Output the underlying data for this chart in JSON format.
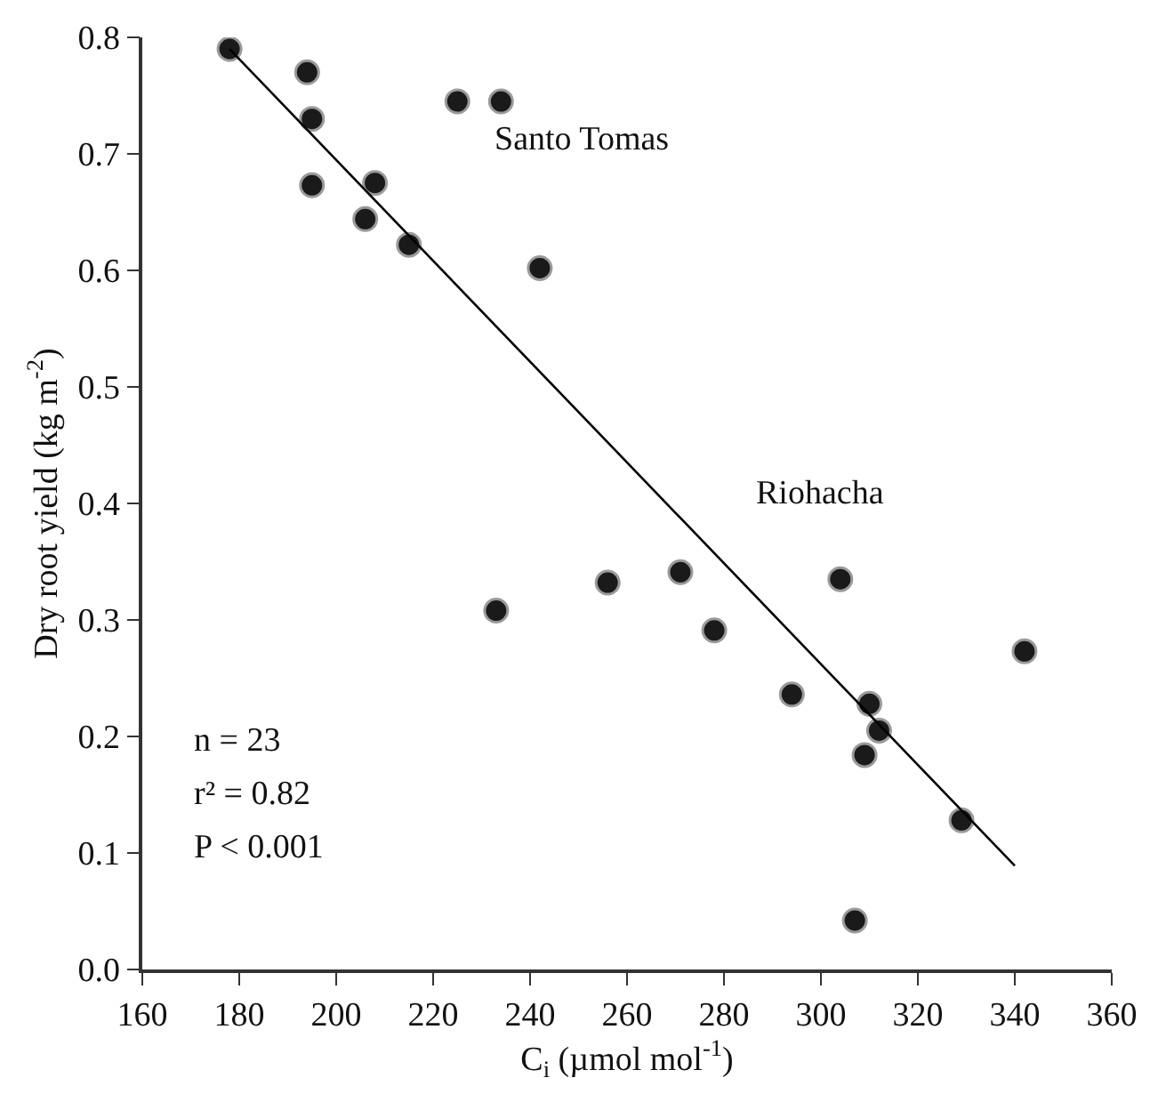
{
  "chart_data": {
    "type": "scatter",
    "xlabel": "C$_{i}$ (µmol mol$^{-1}$)",
    "ylabel": "Dry root yield (kg m$^{-2}$)",
    "xlim": [
      160,
      360
    ],
    "xticks": [
      160,
      180,
      200,
      220,
      240,
      260,
      280,
      300,
      320,
      340,
      360
    ],
    "ylim": [
      0,
      0.8
    ],
    "yticks": [
      {
        "value": 0,
        "label": "0.0"
      },
      {
        "value": 0.1,
        "label": "0.1"
      },
      {
        "value": 0.2,
        "label": "0.2"
      },
      {
        "value": 0.3,
        "label": "0.3"
      },
      {
        "value": 0.4,
        "label": "0.4"
      },
      {
        "value": 0.5,
        "label": "0.5"
      },
      {
        "value": 0.6,
        "label": "0.6"
      },
      {
        "value": 0.7,
        "label": "0.7"
      },
      {
        "value": 0.8,
        "label": "0.8"
      }
    ],
    "marker": "circle",
    "series": [
      {
        "color": "#1a1a1a",
        "x": [
          178,
          194,
          195,
          225,
          234,
          195,
          208,
          206,
          215,
          242,
          233,
          256,
          271,
          278,
          304,
          342,
          294,
          310,
          312,
          309,
          329,
          307
        ],
        "values": [
          0.79,
          0.77,
          0.73,
          0.745,
          0.745,
          0.673,
          0.675,
          0.644,
          0.622,
          0.602,
          0.308,
          0.332,
          0.341,
          0.291,
          0.335,
          0.273,
          0.236,
          0.228,
          0.205,
          0.184,
          0.128,
          0.042
        ]
      },
      {
        "type": "line",
        "color": "#000000",
        "marker": "none",
        "line_style": "solid",
        "x": [
          178,
          340
        ],
        "values": [
          0.79,
          0.089
        ]
      }
    ],
    "annotations": [
      "Santo Tomas",
      "Riohacha",
      "n = 23",
      "r² = 0.82",
      "P < 0.001"
    ]
  }
}
